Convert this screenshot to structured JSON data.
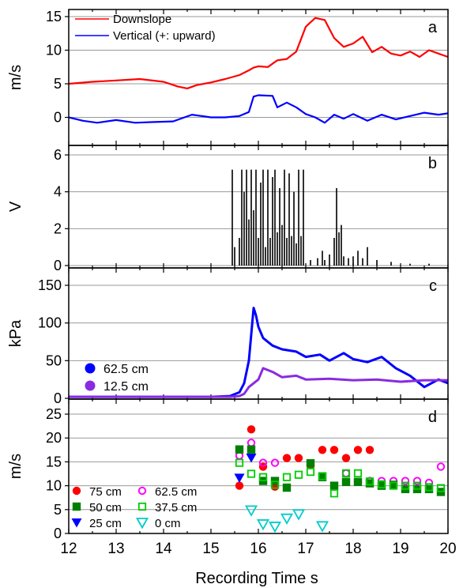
{
  "figure": {
    "x_axis_label": "Recording Time  s",
    "x_ticks": [
      "12",
      "13",
      "14",
      "15",
      "16",
      "17",
      "18",
      "19",
      "20"
    ],
    "xlim": [
      12,
      20
    ]
  },
  "chart_data": [
    {
      "panel": "a",
      "type": "line",
      "ylabel": "m/s",
      "ylim": [
        -1.5,
        15.5
      ],
      "yticks": [
        "0",
        "5",
        "10",
        "15"
      ],
      "grid": true,
      "legend": "top-left",
      "series": [
        {
          "name": "Downslope",
          "color": "#ff0000",
          "x": [
            12.0,
            12.5,
            13.0,
            13.5,
            14.0,
            14.3,
            14.5,
            14.7,
            15.0,
            15.3,
            15.6,
            15.8,
            15.9,
            16.0,
            16.2,
            16.4,
            16.6,
            16.8,
            17.0,
            17.2,
            17.4,
            17.6,
            17.8,
            18.0,
            18.2,
            18.4,
            18.6,
            18.8,
            19.0,
            19.2,
            19.4,
            19.6,
            19.8,
            20.0
          ],
          "y": [
            5.0,
            5.3,
            5.5,
            5.7,
            5.3,
            4.6,
            4.3,
            4.8,
            5.2,
            5.7,
            6.3,
            7.0,
            7.4,
            7.6,
            7.5,
            8.5,
            8.7,
            9.8,
            13.5,
            14.8,
            14.5,
            11.8,
            10.5,
            11.0,
            12.0,
            9.7,
            10.5,
            9.5,
            9.2,
            9.8,
            9.0,
            10.0,
            9.5,
            9.0
          ]
        },
        {
          "name": "Vertical (+: upward)",
          "color": "#0000ff",
          "x": [
            12.0,
            12.3,
            12.6,
            13.0,
            13.4,
            13.8,
            14.2,
            14.6,
            15.0,
            15.3,
            15.6,
            15.8,
            15.9,
            16.0,
            16.3,
            16.4,
            16.6,
            16.8,
            17.0,
            17.2,
            17.4,
            17.6,
            17.8,
            18.0,
            18.3,
            18.6,
            18.9,
            19.2,
            19.5,
            19.8,
            20.0
          ],
          "y": [
            0.0,
            -0.5,
            -0.8,
            -0.4,
            -0.8,
            -0.7,
            -0.6,
            0.4,
            0.0,
            0.0,
            0.2,
            0.8,
            3.1,
            3.3,
            3.2,
            1.5,
            2.2,
            1.5,
            0.5,
            0.0,
            -0.8,
            0.4,
            -0.2,
            0.5,
            -0.5,
            0.4,
            -0.3,
            0.2,
            0.7,
            0.4,
            0.6
          ]
        }
      ]
    },
    {
      "panel": "b",
      "type": "bar",
      "ylabel": "V",
      "ylim": [
        0,
        6
      ],
      "yticks": [
        "0",
        "2",
        "4",
        "6"
      ],
      "grid": true,
      "series": [
        {
          "name": "",
          "color": "#000000",
          "x": [
            15.45,
            15.5,
            15.6,
            15.65,
            15.7,
            15.75,
            15.8,
            15.85,
            15.9,
            15.95,
            16.0,
            16.05,
            16.1,
            16.15,
            16.2,
            16.25,
            16.3,
            16.35,
            16.4,
            16.45,
            16.5,
            16.55,
            16.6,
            16.65,
            16.7,
            16.75,
            16.8,
            16.85,
            16.9,
            16.95,
            17.1,
            17.25,
            17.35,
            17.4,
            17.5,
            17.6,
            17.65,
            17.7,
            17.75,
            17.8,
            17.9,
            18.0,
            18.1,
            18.2,
            18.3,
            18.5,
            18.8,
            19.2,
            19.6
          ],
          "y": [
            5.2,
            1.0,
            1.5,
            5.2,
            4.0,
            5.2,
            2.5,
            5.2,
            3.0,
            5.2,
            1.5,
            4.5,
            5.2,
            1.0,
            5.2,
            1.5,
            4.8,
            5.2,
            1.8,
            4.2,
            2.2,
            5.2,
            1.5,
            5.0,
            1.6,
            4.0,
            1.2,
            5.2,
            1.6,
            5.2,
            0.3,
            0.4,
            0.8,
            0.3,
            0.6,
            1.5,
            4.2,
            1.8,
            2.2,
            0.5,
            0.4,
            0.5,
            0.8,
            0.4,
            1.0,
            0.3,
            0.2,
            0.1,
            0.1
          ]
        }
      ]
    },
    {
      "panel": "c",
      "type": "line",
      "ylabel": "kPa",
      "ylim": [
        0,
        150
      ],
      "yticks": [
        "0",
        "50",
        "100",
        "150"
      ],
      "grid": true,
      "legend": "bottom-left",
      "series": [
        {
          "name": "62.5 cm",
          "color": "#0000ff",
          "x": [
            12.0,
            13.0,
            14.0,
            15.0,
            15.4,
            15.6,
            15.7,
            15.8,
            15.9,
            15.95,
            16.0,
            16.1,
            16.3,
            16.5,
            16.8,
            17.0,
            17.3,
            17.5,
            17.8,
            18.0,
            18.3,
            18.6,
            18.9,
            19.2,
            19.5,
            19.8,
            20.0
          ],
          "y": [
            2,
            2,
            2,
            2,
            3,
            8,
            20,
            50,
            120,
            110,
            95,
            80,
            70,
            65,
            62,
            55,
            58,
            50,
            60,
            52,
            48,
            55,
            40,
            30,
            15,
            25,
            20
          ]
        },
        {
          "name": "12.5 cm",
          "color": "#8a2be2",
          "x": [
            12.0,
            13.0,
            14.0,
            15.0,
            15.4,
            15.6,
            15.7,
            15.8,
            15.9,
            16.0,
            16.1,
            16.3,
            16.5,
            16.8,
            17.0,
            17.5,
            18.0,
            18.5,
            19.0,
            19.5,
            20.0
          ],
          "y": [
            2,
            2,
            2,
            2,
            2,
            3,
            6,
            15,
            20,
            25,
            40,
            35,
            28,
            30,
            25,
            26,
            24,
            25,
            22,
            24,
            24
          ]
        }
      ]
    },
    {
      "panel": "d",
      "type": "scatter",
      "ylabel": "m/s",
      "ylim": [
        0,
        25
      ],
      "yticks": [
        "0",
        "5",
        "10",
        "15",
        "20",
        "25"
      ],
      "grid": true,
      "legend": "bottom-left",
      "series": [
        {
          "name": "75 cm",
          "color": "#ff0000",
          "marker": "circle-filled",
          "x": [
            15.6,
            15.85,
            16.1,
            16.35,
            16.6,
            16.85,
            17.1,
            17.35,
            17.6,
            17.85,
            18.1,
            18.35
          ],
          "y": [
            10.0,
            21.8,
            14.0,
            9.8,
            15.8,
            15.8,
            14.3,
            17.5,
            17.5,
            15.8,
            17.5,
            17.5
          ]
        },
        {
          "name": "62.5 cm",
          "color": "#ff00ff",
          "marker": "circle-open",
          "x": [
            15.6,
            15.85,
            16.1,
            16.35,
            17.85,
            18.1,
            18.35,
            18.6,
            18.85,
            19.1,
            19.35,
            19.6,
            19.85
          ],
          "y": [
            16.3,
            19.0,
            14.8,
            14.8,
            12.6,
            10.8,
            11.0,
            11.0,
            11.0,
            11.0,
            11.0,
            10.6,
            14.0
          ]
        },
        {
          "name": "50 cm",
          "color": "#008000",
          "marker": "square-filled",
          "x": [
            15.6,
            15.85,
            16.1,
            16.35,
            16.6,
            17.1,
            17.35,
            17.6,
            17.85,
            18.1,
            18.35,
            18.6,
            18.85,
            19.1,
            19.35,
            19.6,
            19.85
          ],
          "y": [
            17.6,
            17.6,
            11.0,
            11.0,
            9.6,
            14.7,
            11.8,
            10.0,
            10.8,
            10.8,
            10.5,
            10.0,
            10.2,
            9.3,
            9.3,
            9.3,
            8.7
          ]
        },
        {
          "name": "37.5 cm",
          "color": "#00cc00",
          "marker": "square-open",
          "x": [
            15.6,
            15.85,
            16.1,
            16.35,
            16.6,
            16.85,
            17.1,
            17.35,
            17.6,
            17.85,
            18.1,
            18.35,
            18.6,
            18.85,
            19.1,
            19.35,
            19.6,
            19.85
          ],
          "y": [
            14.8,
            12.5,
            11.8,
            10.2,
            11.8,
            12.3,
            12.9,
            12.0,
            8.4,
            12.6,
            12.6,
            10.9,
            10.3,
            10.0,
            10.0,
            10.0,
            9.7,
            9.5
          ]
        },
        {
          "name": "25 cm",
          "color": "#0000ff",
          "marker": "triangle-down-filled",
          "x": [
            15.6,
            15.85
          ],
          "y": [
            11.7,
            15.9
          ]
        },
        {
          "name": "0 cm",
          "color": "#00cccc",
          "marker": "triangle-down-open",
          "x": [
            15.85,
            16.1,
            16.35,
            16.6,
            16.85,
            17.35
          ],
          "y": [
            4.9,
            2.0,
            1.5,
            3.2,
            4.1,
            1.6
          ]
        }
      ]
    }
  ]
}
